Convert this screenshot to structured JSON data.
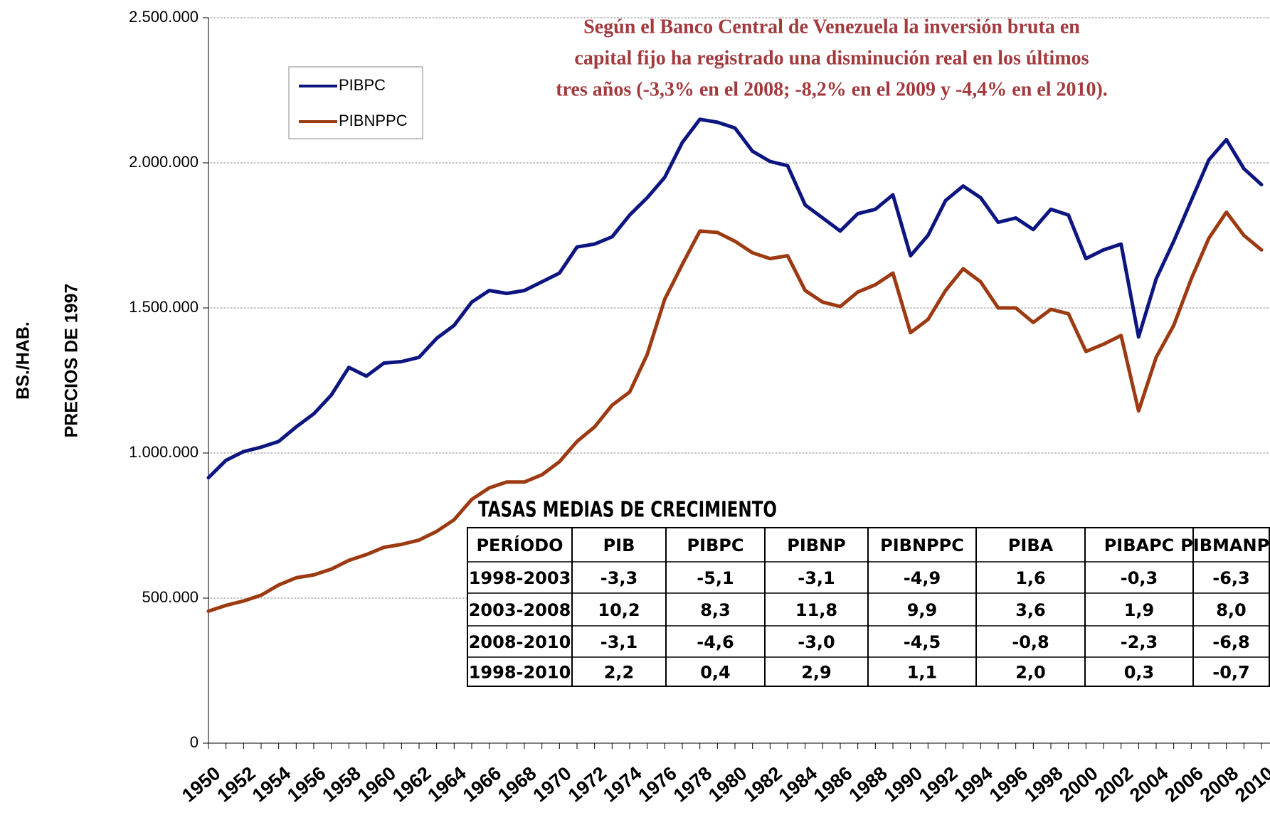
{
  "chart_data": {
    "type": "line",
    "annotation": [
      "Según el Banco Central de Venezuela la inversión bruta en",
      "capital fijo ha registrado una disminución real en los últimos",
      "tres años (-3,3% en el 2008; -8,2% en el 2009 y -4,4% en el 2010)."
    ],
    "y_labels": [
      "BS./HAB.",
      "PRECIOS DE 1997"
    ],
    "x": [
      1950,
      1951,
      1952,
      1953,
      1954,
      1955,
      1956,
      1957,
      1958,
      1959,
      1960,
      1961,
      1962,
      1963,
      1964,
      1965,
      1966,
      1967,
      1968,
      1969,
      1970,
      1971,
      1972,
      1973,
      1974,
      1975,
      1976,
      1977,
      1978,
      1979,
      1980,
      1981,
      1982,
      1983,
      1984,
      1985,
      1986,
      1987,
      1988,
      1989,
      1990,
      1991,
      1992,
      1993,
      1994,
      1995,
      1996,
      1997,
      1998,
      1999,
      2000,
      2001,
      2002,
      2003,
      2004,
      2005,
      2006,
      2007,
      2008,
      2009,
      2010
    ],
    "series": [
      {
        "name": "PIBPC",
        "color": "#0d1680",
        "values": [
          915000,
          975000,
          1005000,
          1020000,
          1040000,
          1090000,
          1135000,
          1200000,
          1295000,
          1265000,
          1310000,
          1315000,
          1330000,
          1395000,
          1440000,
          1520000,
          1560000,
          1550000,
          1560000,
          1590000,
          1620000,
          1710000,
          1720000,
          1745000,
          1820000,
          1880000,
          1950000,
          2070000,
          2150000,
          2140000,
          2120000,
          2040000,
          2005000,
          1990000,
          1855000,
          1810000,
          1765000,
          1825000,
          1840000,
          1890000,
          1680000,
          1750000,
          1870000,
          1920000,
          1880000,
          1795000,
          1810000,
          1770000,
          1840000,
          1820000,
          1670000,
          1700000,
          1720000,
          1400000,
          1600000,
          1730000,
          1870000,
          2010000,
          2080000,
          1980000,
          1925000
        ]
      },
      {
        "name": "PIBNPPC",
        "color": "#9c3a12",
        "values": [
          455000,
          475000,
          490000,
          510000,
          545000,
          570000,
          580000,
          600000,
          630000,
          650000,
          675000,
          685000,
          700000,
          730000,
          770000,
          840000,
          880000,
          900000,
          900000,
          925000,
          970000,
          1040000,
          1090000,
          1165000,
          1210000,
          1340000,
          1530000,
          1650000,
          1765000,
          1760000,
          1730000,
          1690000,
          1670000,
          1680000,
          1560000,
          1520000,
          1505000,
          1555000,
          1580000,
          1620000,
          1415000,
          1460000,
          1560000,
          1635000,
          1590000,
          1500000,
          1500000,
          1450000,
          1495000,
          1480000,
          1350000,
          1375000,
          1405000,
          1145000,
          1330000,
          1440000,
          1600000,
          1740000,
          1830000,
          1750000,
          1700000
        ]
      }
    ],
    "xlim": [
      1950,
      2010
    ],
    "xticks": [
      1950,
      1952,
      1954,
      1956,
      1958,
      1960,
      1962,
      1964,
      1966,
      1968,
      1970,
      1972,
      1974,
      1976,
      1978,
      1980,
      1982,
      1984,
      1986,
      1988,
      1990,
      1992,
      1994,
      1996,
      1998,
      2000,
      2002,
      2004,
      2006,
      2008,
      2010
    ],
    "ylim": [
      0,
      2500000
    ],
    "yticks": [
      0,
      {
        "value": 500000,
        "label": "500.000"
      },
      {
        "value": 1000000,
        "label": "1.000.000"
      },
      {
        "value": 1500000,
        "label": "1.500.000"
      },
      {
        "value": 2000000,
        "label": "2.000.000"
      },
      {
        "value": 2500000,
        "label": "2.500.000"
      }
    ],
    "grid": true
  },
  "table": {
    "title": "TASAS MEDIAS DE CRECIMIENTO",
    "headers": [
      "PERÍODO",
      "PIB",
      "PIBPC",
      "PIBNP",
      "PIBNPPC",
      "PIBA",
      "PIBAPC",
      "PIBMANPC"
    ],
    "rows": [
      [
        "1998-2003",
        "-3,3",
        "-5,1",
        "-3,1",
        "-4,9",
        "1,6",
        "-0,3",
        "-6,3"
      ],
      [
        "2003-2008",
        "10,2",
        "8,3",
        "11,8",
        "9,9",
        "3,6",
        "1,9",
        "8,0"
      ],
      [
        "2008-2010",
        "-3,1",
        "-4,6",
        "-3,0",
        "-4,5",
        "-0,8",
        "-2,3",
        "-6,8"
      ],
      [
        "1998-2010",
        "2,2",
        "0,4",
        "2,9",
        "1,1",
        "2,0",
        "0,3",
        "-0,7"
      ]
    ]
  }
}
